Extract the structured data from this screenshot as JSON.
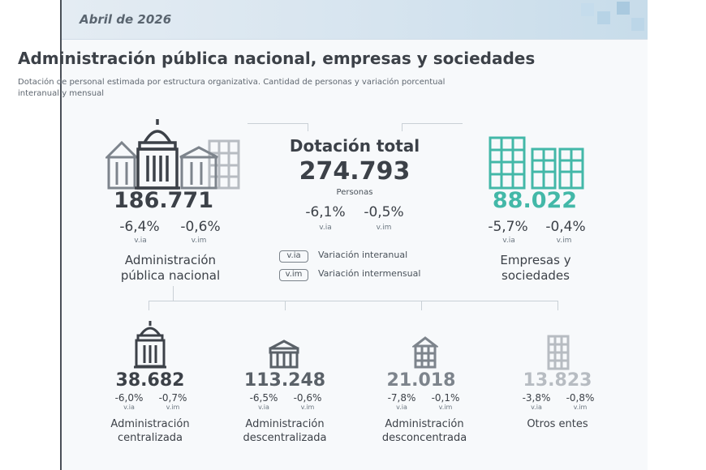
{
  "header": {
    "date": "Abril de 2026"
  },
  "title": "Administración pública nacional, empresas y sociedades",
  "subtitle_line1": "Dotación de personal estimada por estructura organizativa. Cantidad de personas y variación porcentual",
  "subtitle_line2": "interanual y mensual",
  "total": {
    "label": "Dotación total",
    "value": "274.793",
    "unit": "Personas",
    "via": "-6,1%",
    "vim": "-0,5%",
    "via_label": "v.ia",
    "vim_label": "v.im"
  },
  "apn": {
    "value": "186.771",
    "via": "-6,4%",
    "vim": "-0,6%",
    "via_label": "v.ia",
    "vim_label": "v.im",
    "label_line1": "Administración",
    "label_line2": "pública nacional"
  },
  "empresas": {
    "value": "88.022",
    "via": "-5,7%",
    "vim": "-0,4%",
    "via_label": "v.ia",
    "vim_label": "v.im",
    "label_line1": "Empresas y",
    "label_line2": "sociedades"
  },
  "legend": [
    {
      "tag": "v.ia",
      "text": "Variación interanual"
    },
    {
      "tag": "v.im",
      "text": "Variación intermensual"
    }
  ],
  "subgroups": [
    {
      "value": "38.682",
      "via": "-6,0%",
      "vim": "-0,7%",
      "via_label": "v.ia",
      "vim_label": "v.im",
      "label_line1": "Administración",
      "label_line2": "centralizada"
    },
    {
      "value": "113.248",
      "via": "-6,5%",
      "vim": "-0,6%",
      "via_label": "v.ia",
      "vim_label": "v.im",
      "label_line1": "Administración",
      "label_line2": "descentralizada"
    },
    {
      "value": "21.018",
      "via": "-7,8%",
      "vim": "-0,1%",
      "via_label": "v.ia",
      "vim_label": "v.im",
      "label_line1": "Administración",
      "label_line2": "desconcentrada"
    },
    {
      "value": "13.823",
      "via": "-3,8%",
      "vim": "-0,8%",
      "via_label": "v.ia",
      "vim_label": "v.im",
      "label_line1": "Otros entes",
      "label_line2": ""
    }
  ],
  "colors": {
    "dark": "#3c4148",
    "teal": "#43b8a8",
    "gray_mid": "#7d848c",
    "gray_light": "#b7bcc2",
    "line": "#c9d0d6"
  }
}
